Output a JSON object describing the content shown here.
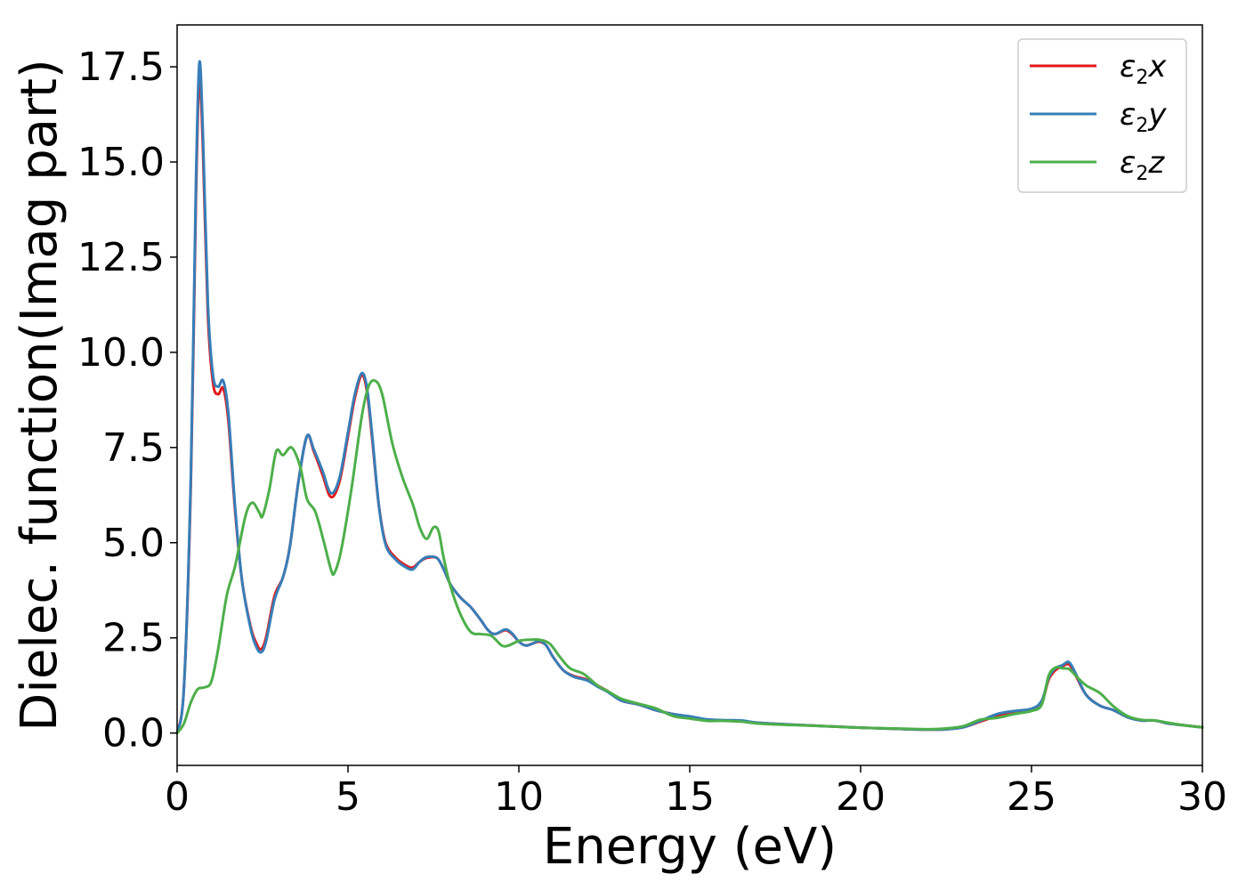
{
  "chart_data": {
    "type": "line",
    "xlabel": "Energy (eV)",
    "ylabel": "Dielec. function(Imag part)",
    "xlim": [
      0,
      30
    ],
    "ylim": [
      -0.85,
      18.6
    ],
    "xticks": [
      0,
      5,
      10,
      15,
      20,
      25,
      30
    ],
    "xtick_labels": [
      "0",
      "5",
      "10",
      "15",
      "20",
      "25",
      "30"
    ],
    "yticks": [
      0.0,
      2.5,
      5.0,
      7.5,
      10.0,
      12.5,
      15.0,
      17.5
    ],
    "ytick_labels": [
      "0.0",
      "2.5",
      "5.0",
      "7.5",
      "10.0",
      "12.5",
      "15.0",
      "17.5"
    ],
    "grid": false,
    "legend_position": "top-right",
    "series": [
      {
        "name": "ε2x",
        "legend": {
          "symbol": "ε",
          "sub": "2",
          "axis": "x"
        },
        "color": "#e41a1c",
        "points": [
          [
            0,
            0
          ],
          [
            0.2,
            1.2
          ],
          [
            0.4,
            6.5
          ],
          [
            0.55,
            14
          ],
          [
            0.65,
            17.2
          ],
          [
            0.75,
            15.5
          ],
          [
            0.9,
            11
          ],
          [
            1.05,
            9.2
          ],
          [
            1.2,
            8.9
          ],
          [
            1.35,
            9.05
          ],
          [
            1.5,
            8.2
          ],
          [
            1.7,
            5.8
          ],
          [
            1.9,
            4.0
          ],
          [
            2.15,
            2.8
          ],
          [
            2.3,
            2.4
          ],
          [
            2.45,
            2.2
          ],
          [
            2.6,
            2.5
          ],
          [
            2.85,
            3.6
          ],
          [
            3.1,
            4.1
          ],
          [
            3.3,
            4.9
          ],
          [
            3.55,
            6.6
          ],
          [
            3.8,
            7.8
          ],
          [
            4.0,
            7.4
          ],
          [
            4.25,
            6.8
          ],
          [
            4.5,
            6.2
          ],
          [
            4.75,
            6.6
          ],
          [
            5.0,
            7.8
          ],
          [
            5.2,
            8.8
          ],
          [
            5.4,
            9.4
          ],
          [
            5.55,
            9.0
          ],
          [
            5.7,
            7.8
          ],
          [
            5.9,
            6.0
          ],
          [
            6.1,
            5.0
          ],
          [
            6.4,
            4.6
          ],
          [
            6.7,
            4.4
          ],
          [
            6.9,
            4.35
          ],
          [
            7.1,
            4.5
          ],
          [
            7.3,
            4.6
          ],
          [
            7.6,
            4.6
          ],
          [
            7.8,
            4.3
          ],
          [
            8.0,
            3.9
          ],
          [
            8.3,
            3.55
          ],
          [
            8.6,
            3.3
          ],
          [
            8.9,
            2.95
          ],
          [
            9.1,
            2.7
          ],
          [
            9.3,
            2.6
          ],
          [
            9.6,
            2.7
          ],
          [
            9.8,
            2.6
          ],
          [
            10.0,
            2.4
          ],
          [
            10.2,
            2.3
          ],
          [
            10.4,
            2.35
          ],
          [
            10.6,
            2.4
          ],
          [
            10.8,
            2.3
          ],
          [
            11.0,
            2.0
          ],
          [
            11.3,
            1.65
          ],
          [
            11.6,
            1.5
          ],
          [
            12.0,
            1.4
          ],
          [
            12.3,
            1.25
          ],
          [
            12.6,
            1.1
          ],
          [
            13.0,
            0.85
          ],
          [
            13.5,
            0.75
          ],
          [
            14.0,
            0.6
          ],
          [
            14.5,
            0.5
          ],
          [
            15.0,
            0.42
          ],
          [
            15.5,
            0.35
          ],
          [
            16.0,
            0.33
          ],
          [
            16.5,
            0.32
          ],
          [
            17.0,
            0.27
          ],
          [
            18.0,
            0.22
          ],
          [
            19.0,
            0.18
          ],
          [
            20.0,
            0.14
          ],
          [
            21.0,
            0.11
          ],
          [
            22.0,
            0.09
          ],
          [
            22.5,
            0.1
          ],
          [
            23.0,
            0.15
          ],
          [
            23.5,
            0.3
          ],
          [
            24.0,
            0.45
          ],
          [
            24.5,
            0.55
          ],
          [
            25.0,
            0.62
          ],
          [
            25.3,
            0.8
          ],
          [
            25.5,
            1.4
          ],
          [
            25.7,
            1.65
          ],
          [
            25.9,
            1.75
          ],
          [
            26.1,
            1.8
          ],
          [
            26.3,
            1.5
          ],
          [
            26.6,
            1.0
          ],
          [
            27.0,
            0.72
          ],
          [
            27.4,
            0.6
          ],
          [
            27.8,
            0.42
          ],
          [
            28.2,
            0.33
          ],
          [
            28.6,
            0.33
          ],
          [
            29.0,
            0.25
          ],
          [
            29.5,
            0.2
          ],
          [
            30.0,
            0.15
          ]
        ]
      },
      {
        "name": "ε2y",
        "legend": {
          "symbol": "ε",
          "sub": "2",
          "axis": "y"
        },
        "color": "#377eb8",
        "points": [
          [
            0,
            0
          ],
          [
            0.2,
            1.2
          ],
          [
            0.4,
            6.7
          ],
          [
            0.55,
            14.4
          ],
          [
            0.65,
            17.6
          ],
          [
            0.75,
            15.9
          ],
          [
            0.9,
            11.3
          ],
          [
            1.05,
            9.4
          ],
          [
            1.2,
            9.1
          ],
          [
            1.35,
            9.25
          ],
          [
            1.5,
            8.4
          ],
          [
            1.7,
            5.9
          ],
          [
            1.9,
            4.0
          ],
          [
            2.15,
            2.75
          ],
          [
            2.3,
            2.3
          ],
          [
            2.45,
            2.12
          ],
          [
            2.6,
            2.4
          ],
          [
            2.85,
            3.5
          ],
          [
            3.1,
            4.1
          ],
          [
            3.3,
            4.9
          ],
          [
            3.55,
            6.6
          ],
          [
            3.8,
            7.8
          ],
          [
            4.0,
            7.45
          ],
          [
            4.25,
            6.9
          ],
          [
            4.5,
            6.3
          ],
          [
            4.75,
            6.7
          ],
          [
            5.0,
            7.9
          ],
          [
            5.2,
            8.9
          ],
          [
            5.4,
            9.45
          ],
          [
            5.55,
            9.1
          ],
          [
            5.7,
            7.9
          ],
          [
            5.9,
            6.0
          ],
          [
            6.1,
            4.95
          ],
          [
            6.4,
            4.55
          ],
          [
            6.7,
            4.35
          ],
          [
            6.9,
            4.3
          ],
          [
            7.1,
            4.5
          ],
          [
            7.3,
            4.62
          ],
          [
            7.6,
            4.6
          ],
          [
            7.8,
            4.3
          ],
          [
            8.0,
            3.9
          ],
          [
            8.3,
            3.55
          ],
          [
            8.6,
            3.3
          ],
          [
            8.9,
            2.95
          ],
          [
            9.1,
            2.7
          ],
          [
            9.3,
            2.6
          ],
          [
            9.6,
            2.72
          ],
          [
            9.8,
            2.62
          ],
          [
            10.0,
            2.4
          ],
          [
            10.2,
            2.3
          ],
          [
            10.4,
            2.35
          ],
          [
            10.6,
            2.42
          ],
          [
            10.8,
            2.3
          ],
          [
            11.0,
            2.0
          ],
          [
            11.3,
            1.65
          ],
          [
            11.6,
            1.48
          ],
          [
            12.0,
            1.38
          ],
          [
            12.3,
            1.22
          ],
          [
            12.6,
            1.08
          ],
          [
            13.0,
            0.85
          ],
          [
            13.5,
            0.75
          ],
          [
            14.0,
            0.6
          ],
          [
            14.5,
            0.5
          ],
          [
            15.0,
            0.44
          ],
          [
            15.5,
            0.36
          ],
          [
            16.0,
            0.34
          ],
          [
            16.5,
            0.33
          ],
          [
            17.0,
            0.27
          ],
          [
            18.0,
            0.22
          ],
          [
            19.0,
            0.18
          ],
          [
            20.0,
            0.14
          ],
          [
            21.0,
            0.11
          ],
          [
            22.0,
            0.09
          ],
          [
            22.5,
            0.1
          ],
          [
            23.0,
            0.15
          ],
          [
            23.5,
            0.32
          ],
          [
            24.0,
            0.5
          ],
          [
            24.5,
            0.58
          ],
          [
            25.0,
            0.64
          ],
          [
            25.3,
            0.85
          ],
          [
            25.5,
            1.45
          ],
          [
            25.7,
            1.7
          ],
          [
            25.9,
            1.78
          ],
          [
            26.1,
            1.86
          ],
          [
            26.3,
            1.55
          ],
          [
            26.6,
            1.0
          ],
          [
            27.0,
            0.72
          ],
          [
            27.4,
            0.6
          ],
          [
            27.8,
            0.42
          ],
          [
            28.2,
            0.33
          ],
          [
            28.6,
            0.33
          ],
          [
            29.0,
            0.25
          ],
          [
            29.5,
            0.2
          ],
          [
            30.0,
            0.15
          ]
        ]
      },
      {
        "name": "ε2z",
        "legend": {
          "symbol": "ε",
          "sub": "2",
          "axis": "z"
        },
        "color": "#4daf4a",
        "points": [
          [
            0,
            0
          ],
          [
            0.2,
            0.25
          ],
          [
            0.4,
            0.8
          ],
          [
            0.6,
            1.15
          ],
          [
            0.8,
            1.2
          ],
          [
            1.0,
            1.35
          ],
          [
            1.2,
            2.2
          ],
          [
            1.45,
            3.6
          ],
          [
            1.7,
            4.4
          ],
          [
            2.0,
            5.7
          ],
          [
            2.2,
            6.05
          ],
          [
            2.4,
            5.8
          ],
          [
            2.5,
            5.7
          ],
          [
            2.7,
            6.4
          ],
          [
            2.9,
            7.4
          ],
          [
            3.1,
            7.3
          ],
          [
            3.35,
            7.5
          ],
          [
            3.6,
            7.0
          ],
          [
            3.8,
            6.15
          ],
          [
            4.05,
            5.8
          ],
          [
            4.3,
            5.0
          ],
          [
            4.5,
            4.3
          ],
          [
            4.6,
            4.2
          ],
          [
            4.8,
            4.8
          ],
          [
            5.1,
            6.4
          ],
          [
            5.4,
            8.3
          ],
          [
            5.6,
            9.1
          ],
          [
            5.8,
            9.25
          ],
          [
            6.0,
            8.9
          ],
          [
            6.3,
            7.6
          ],
          [
            6.6,
            6.7
          ],
          [
            6.9,
            6.0
          ],
          [
            7.1,
            5.4
          ],
          [
            7.3,
            5.1
          ],
          [
            7.5,
            5.4
          ],
          [
            7.65,
            5.3
          ],
          [
            7.8,
            4.6
          ],
          [
            8.0,
            3.85
          ],
          [
            8.3,
            3.1
          ],
          [
            8.6,
            2.65
          ],
          [
            8.9,
            2.6
          ],
          [
            9.2,
            2.55
          ],
          [
            9.5,
            2.3
          ],
          [
            9.7,
            2.3
          ],
          [
            10.0,
            2.42
          ],
          [
            10.3,
            2.45
          ],
          [
            10.6,
            2.45
          ],
          [
            10.9,
            2.35
          ],
          [
            11.2,
            2.0
          ],
          [
            11.5,
            1.7
          ],
          [
            11.9,
            1.55
          ],
          [
            12.3,
            1.25
          ],
          [
            12.6,
            1.1
          ],
          [
            13.0,
            0.9
          ],
          [
            13.5,
            0.77
          ],
          [
            14.0,
            0.65
          ],
          [
            14.5,
            0.45
          ],
          [
            15.0,
            0.38
          ],
          [
            15.5,
            0.32
          ],
          [
            16.0,
            0.32
          ],
          [
            16.5,
            0.3
          ],
          [
            17.0,
            0.25
          ],
          [
            18.0,
            0.21
          ],
          [
            19.0,
            0.18
          ],
          [
            20.0,
            0.14
          ],
          [
            21.0,
            0.12
          ],
          [
            22.0,
            0.1
          ],
          [
            22.5,
            0.12
          ],
          [
            23.0,
            0.18
          ],
          [
            23.5,
            0.35
          ],
          [
            24.0,
            0.4
          ],
          [
            24.5,
            0.5
          ],
          [
            25.0,
            0.58
          ],
          [
            25.3,
            0.75
          ],
          [
            25.5,
            1.5
          ],
          [
            25.7,
            1.72
          ],
          [
            25.9,
            1.7
          ],
          [
            26.1,
            1.68
          ],
          [
            26.3,
            1.5
          ],
          [
            26.6,
            1.25
          ],
          [
            27.0,
            1.05
          ],
          [
            27.4,
            0.7
          ],
          [
            27.8,
            0.45
          ],
          [
            28.2,
            0.35
          ],
          [
            28.6,
            0.33
          ],
          [
            29.0,
            0.27
          ],
          [
            29.5,
            0.2
          ],
          [
            30.0,
            0.15
          ]
        ]
      }
    ]
  }
}
